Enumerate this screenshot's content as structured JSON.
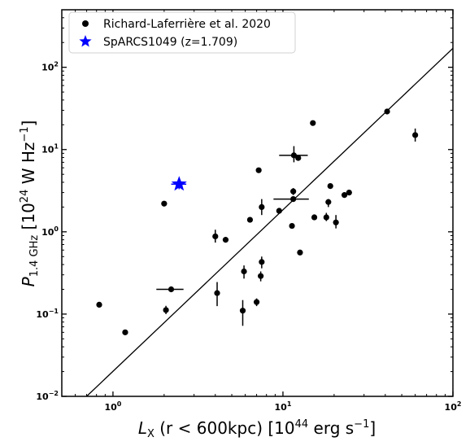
{
  "chart_data": {
    "type": "scatter",
    "xscale": "log",
    "yscale": "log",
    "xlim": [
      0.5,
      100
    ],
    "ylim": [
      0.01,
      500
    ],
    "x_ticks": [
      {
        "value": 1,
        "base": "10",
        "exp": "0"
      },
      {
        "value": 10,
        "base": "10",
        "exp": "1"
      },
      {
        "value": 100,
        "base": "10",
        "exp": "2"
      }
    ],
    "y_ticks": [
      {
        "value": 0.01,
        "base": "10",
        "exp": "−2"
      },
      {
        "value": 0.1,
        "base": "10",
        "exp": "−1"
      },
      {
        "value": 1,
        "base": "10",
        "exp": "0"
      },
      {
        "value": 10,
        "base": "10",
        "exp": "1"
      },
      {
        "value": 100,
        "base": "10",
        "exp": "2"
      }
    ],
    "xlabel": {
      "sym": "L",
      "sub": "X",
      "body": " (r < 600kpc) [10",
      "exp": "44",
      "unit": " erg s",
      "unit_exp": "−1",
      "close": "]"
    },
    "ylabel": {
      "sym": "P",
      "sub": "1.4 GHz",
      "body": " [10",
      "exp": "24",
      "unit": " W Hz",
      "unit_exp": "−1",
      "close": "]"
    },
    "legend_position": "top-left",
    "series": [
      {
        "name": "Richard-Laferrière et al. 2020",
        "marker": "circle",
        "color": "#000000",
        "points": [
          {
            "x": 0.83,
            "y": 0.13,
            "yerr": [
              0.12,
              0.14
            ]
          },
          {
            "x": 1.18,
            "y": 0.06
          },
          {
            "x": 2.0,
            "y": 2.2
          },
          {
            "x": 2.05,
            "y": 0.112,
            "yerr": [
              0.1,
              0.126
            ]
          },
          {
            "x": 2.2,
            "y": 0.2,
            "xerr": [
              1.8,
              2.6
            ]
          },
          {
            "x": 4.0,
            "y": 0.88,
            "yerr": [
              0.74,
              1.06
            ]
          },
          {
            "x": 4.1,
            "y": 0.18,
            "yerr": [
              0.125,
              0.245
            ]
          },
          {
            "x": 4.6,
            "y": 0.8
          },
          {
            "x": 5.8,
            "y": 0.11,
            "yerr": [
              0.072,
              0.148
            ]
          },
          {
            "x": 5.9,
            "y": 0.33,
            "yerr": [
              0.27,
              0.39
            ]
          },
          {
            "x": 6.4,
            "y": 1.4
          },
          {
            "x": 7.0,
            "y": 0.14,
            "yerr": [
              0.125,
              0.155
            ]
          },
          {
            "x": 7.2,
            "y": 5.6
          },
          {
            "x": 7.4,
            "y": 0.29,
            "yerr": [
              0.25,
              0.33
            ]
          },
          {
            "x": 7.5,
            "y": 0.43,
            "yerr": [
              0.36,
              0.5
            ]
          },
          {
            "x": 7.5,
            "y": 2.0,
            "yerr": [
              1.6,
              2.5
            ]
          },
          {
            "x": 9.5,
            "y": 1.8
          },
          {
            "x": 11.3,
            "y": 1.18
          },
          {
            "x": 11.5,
            "y": 2.5,
            "xerr": [
              8.8,
              14.2
            ]
          },
          {
            "x": 11.5,
            "y": 3.1,
            "yerr": [
              2.8,
              3.4
            ]
          },
          {
            "x": 11.6,
            "y": 8.5,
            "xerr": [
              9.5,
              14.0
            ],
            "yerr": [
              7.0,
              11.0
            ]
          },
          {
            "x": 12.3,
            "y": 7.9
          },
          {
            "x": 12.6,
            "y": 0.56
          },
          {
            "x": 15.0,
            "y": 21.0
          },
          {
            "x": 15.3,
            "y": 1.5
          },
          {
            "x": 18.0,
            "y": 1.5,
            "yerr": [
              1.35,
              1.7
            ]
          },
          {
            "x": 18.5,
            "y": 2.3,
            "yerr": [
              2.0,
              2.5
            ]
          },
          {
            "x": 19.0,
            "y": 3.6
          },
          {
            "x": 20.5,
            "y": 1.3,
            "yerr": [
              1.1,
              1.6
            ]
          },
          {
            "x": 23.0,
            "y": 2.8
          },
          {
            "x": 24.5,
            "y": 3.0
          },
          {
            "x": 41.0,
            "y": 29.0
          },
          {
            "x": 60.0,
            "y": 15.0,
            "yerr": [
              12.5,
              18.0
            ]
          }
        ]
      },
      {
        "name": "SpARCS1049 (z=1.709)",
        "marker": "star",
        "color": "#0000ff",
        "points": [
          {
            "x": 2.45,
            "y": 3.8,
            "xerr": [
              2.2,
              2.7
            ],
            "yerr": [
              3.3,
              4.4
            ]
          }
        ]
      }
    ],
    "fit_line": {
      "from": [
        0.7,
        0.01
      ],
      "to": [
        100,
        170
      ]
    }
  }
}
